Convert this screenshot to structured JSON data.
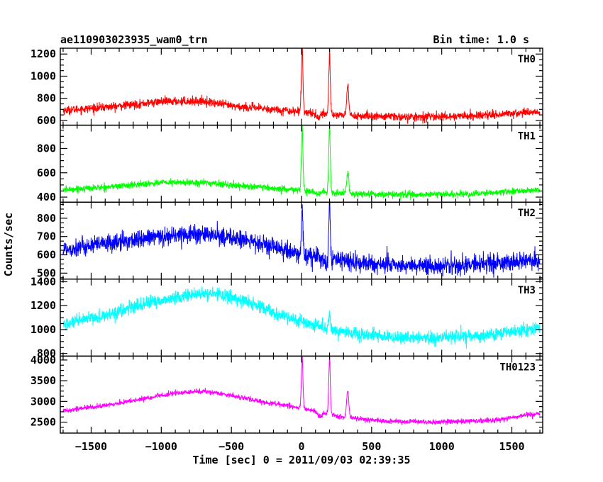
{
  "header": {
    "title": "ae110903023935_wam0_trn",
    "bin_time": "Bin time: 1.0 s"
  },
  "chart_data": {
    "type": "line",
    "title": "ae110903023935_wam0_trn",
    "subtitle": "Bin time: 1.0 s",
    "xlabel": "Time [sec] 0 = 2011/09/03 02:39:35",
    "ylabel": "Counts/sec",
    "xlim": [
      -1720,
      1720
    ],
    "x_ticks": [
      -1500,
      -1000,
      -500,
      0,
      500,
      1000,
      1500
    ],
    "x_tick_labels": [
      "−1500",
      "−1000",
      "−500",
      "0",
      "500",
      "1000",
      "1500"
    ],
    "x_range_data": [
      -1700,
      1700
    ],
    "panels": [
      {
        "label": "TH0",
        "color": "#ff0000",
        "ylim": [
          570,
          1240
        ],
        "y_ticks": [
          600,
          800,
          1000,
          1200
        ],
        "anchors": [
          [
            -1700,
            690
          ],
          [
            -1300,
            730
          ],
          [
            -1000,
            770
          ],
          [
            -700,
            775
          ],
          [
            -500,
            730
          ],
          [
            -200,
            700
          ],
          [
            -20,
            680
          ],
          [
            150,
            660
          ],
          [
            400,
            640
          ],
          [
            800,
            630
          ],
          [
            1200,
            640
          ],
          [
            1700,
            680
          ]
        ],
        "noise": 35,
        "peaks": [
          [
            5,
            1230,
            6
          ],
          [
            200,
            1180,
            6
          ],
          [
            330,
            900,
            8
          ]
        ],
        "dips": [
          [
            120,
            600,
            30
          ]
        ]
      },
      {
        "label": "TH1",
        "color": "#00ff00",
        "ylim": [
          370,
          980
        ],
        "y_ticks": [
          400,
          600,
          800
        ],
        "anchors": [
          [
            -1700,
            460
          ],
          [
            -1300,
            490
          ],
          [
            -1000,
            520
          ],
          [
            -700,
            520
          ],
          [
            -500,
            500
          ],
          [
            -200,
            470
          ],
          [
            -20,
            455
          ],
          [
            150,
            440
          ],
          [
            400,
            425
          ],
          [
            800,
            420
          ],
          [
            1200,
            425
          ],
          [
            1700,
            460
          ]
        ],
        "noise": 25,
        "peaks": [
          [
            5,
            940,
            6
          ],
          [
            200,
            960,
            6
          ],
          [
            330,
            590,
            8
          ]
        ],
        "dips": [
          [
            110,
            410,
            30
          ]
        ]
      },
      {
        "label": "TH2",
        "color": "#0000ff",
        "ylim": [
          475,
          880
        ],
        "y_ticks": [
          500,
          600,
          700,
          800
        ],
        "anchors": [
          [
            -1700,
            630
          ],
          [
            -1400,
            660
          ],
          [
            -1000,
            700
          ],
          [
            -800,
            715
          ],
          [
            -600,
            705
          ],
          [
            -400,
            680
          ],
          [
            -200,
            640
          ],
          [
            -50,
            610
          ],
          [
            150,
            580
          ],
          [
            400,
            555
          ],
          [
            800,
            540
          ],
          [
            1200,
            545
          ],
          [
            1700,
            570
          ]
        ],
        "noise": 45,
        "peaks": [
          [
            5,
            835,
            6
          ],
          [
            200,
            870,
            6
          ]
        ],
        "dips": [
          [
            180,
            500,
            15
          ]
        ]
      },
      {
        "label": "TH3",
        "color": "#00ffff",
        "ylim": [
          790,
          1410
        ],
        "y_ticks": [
          800,
          1000,
          1200,
          1400
        ],
        "anchors": [
          [
            -1700,
            1040
          ],
          [
            -1400,
            1120
          ],
          [
            -1100,
            1220
          ],
          [
            -800,
            1290
          ],
          [
            -600,
            1300
          ],
          [
            -400,
            1240
          ],
          [
            -200,
            1140
          ],
          [
            0,
            1060
          ],
          [
            200,
            1000
          ],
          [
            400,
            960
          ],
          [
            700,
            930
          ],
          [
            1000,
            930
          ],
          [
            1300,
            950
          ],
          [
            1700,
            1010
          ]
        ],
        "noise": 50,
        "peaks": [
          [
            200,
            1140,
            6
          ]
        ],
        "dips": []
      },
      {
        "label": "TH0123",
        "color": "#ff00ff",
        "ylim": [
          2270,
          4060
        ],
        "y_ticks": [
          2500,
          3000,
          3500,
          4000
        ],
        "anchors": [
          [
            -1700,
            2780
          ],
          [
            -1400,
            2900
          ],
          [
            -1100,
            3080
          ],
          [
            -900,
            3200
          ],
          [
            -700,
            3250
          ],
          [
            -500,
            3150
          ],
          [
            -300,
            3000
          ],
          [
            -100,
            2900
          ],
          [
            100,
            2760
          ],
          [
            300,
            2620
          ],
          [
            600,
            2520
          ],
          [
            1000,
            2500
          ],
          [
            1400,
            2560
          ],
          [
            1700,
            2720
          ]
        ],
        "noise": 55,
        "peaks": [
          [
            5,
            4000,
            6
          ],
          [
            200,
            3990,
            6
          ],
          [
            330,
            3250,
            8
          ]
        ],
        "dips": [
          [
            130,
            2550,
            30
          ]
        ]
      }
    ]
  }
}
